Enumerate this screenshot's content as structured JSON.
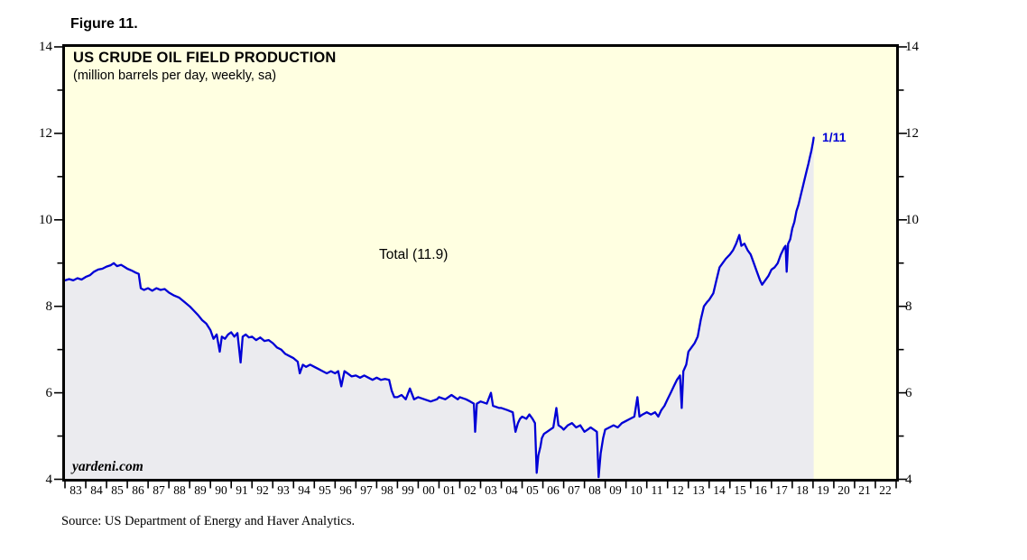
{
  "figure": {
    "label": "Figure 11."
  },
  "chart": {
    "title": "US CRUDE OIL FIELD PRODUCTION",
    "subtitle": "(million barrels per day, weekly, sa)",
    "series_label": "Total (11.9)",
    "last_point_label": "1/11",
    "watermark": "yardeni.com"
  },
  "footer": {
    "source": "Source: US Department of Energy and Haver Analytics."
  },
  "chart_data": {
    "type": "area",
    "title": "US CRUDE OIL FIELD PRODUCTION",
    "subtitle": "(million barrels per day, weekly, sa)",
    "ylabel": "million barrels per day",
    "frequency": "weekly, seasonally adjusted",
    "series_name": "Total",
    "latest_value": 11.9,
    "latest_date_label": "1/11",
    "xlim": [
      1983,
      2023
    ],
    "ylim": [
      4,
      14
    ],
    "y_major_ticks": [
      4,
      6,
      8,
      10,
      12,
      14
    ],
    "y_minor_ticks": [
      5,
      7,
      9,
      11,
      13
    ],
    "x_tick_labels": [
      "83",
      "84",
      "85",
      "86",
      "87",
      "88",
      "89",
      "90",
      "91",
      "92",
      "93",
      "94",
      "95",
      "96",
      "97",
      "98",
      "99",
      "00",
      "01",
      "02",
      "03",
      "04",
      "05",
      "06",
      "07",
      "08",
      "09",
      "10",
      "11",
      "12",
      "13",
      "14",
      "15",
      "16",
      "17",
      "18",
      "19",
      "20",
      "21",
      "22"
    ],
    "legend_position": "none",
    "grid": false,
    "colors": {
      "line": "#0000d6",
      "fill": "#ebebef",
      "plot_bg": "#ffffe1",
      "frame": "#000000",
      "annotation_blue": "#0000d6"
    },
    "points": [
      [
        1983.0,
        8.6
      ],
      [
        1983.2,
        8.63
      ],
      [
        1983.4,
        8.6
      ],
      [
        1983.6,
        8.65
      ],
      [
        1983.8,
        8.62
      ],
      [
        1984.0,
        8.68
      ],
      [
        1984.2,
        8.72
      ],
      [
        1984.4,
        8.8
      ],
      [
        1984.6,
        8.85
      ],
      [
        1984.8,
        8.87
      ],
      [
        1985.0,
        8.92
      ],
      [
        1985.2,
        8.95
      ],
      [
        1985.35,
        9.0
      ],
      [
        1985.5,
        8.93
      ],
      [
        1985.7,
        8.96
      ],
      [
        1985.9,
        8.9
      ],
      [
        1986.0,
        8.87
      ],
      [
        1986.2,
        8.83
      ],
      [
        1986.4,
        8.78
      ],
      [
        1986.55,
        8.75
      ],
      [
        1986.65,
        8.42
      ],
      [
        1986.8,
        8.38
      ],
      [
        1987.0,
        8.42
      ],
      [
        1987.2,
        8.36
      ],
      [
        1987.4,
        8.42
      ],
      [
        1987.6,
        8.38
      ],
      [
        1987.8,
        8.4
      ],
      [
        1988.0,
        8.32
      ],
      [
        1988.25,
        8.25
      ],
      [
        1988.5,
        8.2
      ],
      [
        1988.75,
        8.1
      ],
      [
        1989.0,
        8.0
      ],
      [
        1989.2,
        7.9
      ],
      [
        1989.4,
        7.8
      ],
      [
        1989.6,
        7.68
      ],
      [
        1989.8,
        7.6
      ],
      [
        1990.0,
        7.45
      ],
      [
        1990.15,
        7.25
      ],
      [
        1990.3,
        7.35
      ],
      [
        1990.45,
        6.95
      ],
      [
        1990.55,
        7.3
      ],
      [
        1990.7,
        7.25
      ],
      [
        1990.85,
        7.35
      ],
      [
        1991.0,
        7.4
      ],
      [
        1991.15,
        7.3
      ],
      [
        1991.3,
        7.38
      ],
      [
        1991.45,
        6.7
      ],
      [
        1991.55,
        7.3
      ],
      [
        1991.7,
        7.35
      ],
      [
        1991.85,
        7.28
      ],
      [
        1992.0,
        7.3
      ],
      [
        1992.2,
        7.22
      ],
      [
        1992.4,
        7.28
      ],
      [
        1992.6,
        7.2
      ],
      [
        1992.8,
        7.22
      ],
      [
        1993.0,
        7.15
      ],
      [
        1993.2,
        7.05
      ],
      [
        1993.4,
        7.0
      ],
      [
        1993.6,
        6.9
      ],
      [
        1993.8,
        6.85
      ],
      [
        1994.0,
        6.8
      ],
      [
        1994.2,
        6.72
      ],
      [
        1994.3,
        6.45
      ],
      [
        1994.45,
        6.65
      ],
      [
        1994.6,
        6.6
      ],
      [
        1994.8,
        6.65
      ],
      [
        1995.0,
        6.6
      ],
      [
        1995.2,
        6.55
      ],
      [
        1995.4,
        6.5
      ],
      [
        1995.6,
        6.45
      ],
      [
        1995.8,
        6.5
      ],
      [
        1996.0,
        6.45
      ],
      [
        1996.15,
        6.5
      ],
      [
        1996.3,
        6.15
      ],
      [
        1996.45,
        6.5
      ],
      [
        1996.6,
        6.45
      ],
      [
        1996.8,
        6.38
      ],
      [
        1997.0,
        6.4
      ],
      [
        1997.2,
        6.35
      ],
      [
        1997.4,
        6.4
      ],
      [
        1997.6,
        6.35
      ],
      [
        1997.8,
        6.3
      ],
      [
        1998.0,
        6.35
      ],
      [
        1998.2,
        6.3
      ],
      [
        1998.4,
        6.32
      ],
      [
        1998.6,
        6.3
      ],
      [
        1998.72,
        6.05
      ],
      [
        1998.85,
        5.9
      ],
      [
        1999.0,
        5.9
      ],
      [
        1999.2,
        5.95
      ],
      [
        1999.4,
        5.85
      ],
      [
        1999.6,
        6.1
      ],
      [
        1999.8,
        5.85
      ],
      [
        2000.0,
        5.9
      ],
      [
        2000.3,
        5.85
      ],
      [
        2000.6,
        5.8
      ],
      [
        2000.9,
        5.85
      ],
      [
        2001.0,
        5.9
      ],
      [
        2001.3,
        5.85
      ],
      [
        2001.6,
        5.95
      ],
      [
        2001.9,
        5.85
      ],
      [
        2002.0,
        5.9
      ],
      [
        2002.3,
        5.85
      ],
      [
        2002.5,
        5.8
      ],
      [
        2002.68,
        5.75
      ],
      [
        2002.74,
        5.1
      ],
      [
        2002.82,
        5.75
      ],
      [
        2003.0,
        5.8
      ],
      [
        2003.3,
        5.75
      ],
      [
        2003.5,
        6.0
      ],
      [
        2003.6,
        5.7
      ],
      [
        2003.9,
        5.65
      ],
      [
        2004.0,
        5.65
      ],
      [
        2004.3,
        5.6
      ],
      [
        2004.55,
        5.55
      ],
      [
        2004.68,
        5.1
      ],
      [
        2004.8,
        5.3
      ],
      [
        2004.9,
        5.4
      ],
      [
        2005.0,
        5.45
      ],
      [
        2005.2,
        5.4
      ],
      [
        2005.35,
        5.5
      ],
      [
        2005.5,
        5.4
      ],
      [
        2005.62,
        5.3
      ],
      [
        2005.7,
        4.15
      ],
      [
        2005.78,
        4.55
      ],
      [
        2005.88,
        4.75
      ],
      [
        2005.95,
        4.95
      ],
      [
        2006.05,
        5.05
      ],
      [
        2006.2,
        5.1
      ],
      [
        2006.35,
        5.15
      ],
      [
        2006.5,
        5.2
      ],
      [
        2006.65,
        5.65
      ],
      [
        2006.75,
        5.25
      ],
      [
        2006.9,
        5.2
      ],
      [
        2007.0,
        5.15
      ],
      [
        2007.2,
        5.25
      ],
      [
        2007.4,
        5.3
      ],
      [
        2007.6,
        5.2
      ],
      [
        2007.8,
        5.25
      ],
      [
        2008.0,
        5.1
      ],
      [
        2008.15,
        5.15
      ],
      [
        2008.3,
        5.2
      ],
      [
        2008.45,
        5.15
      ],
      [
        2008.6,
        5.1
      ],
      [
        2008.68,
        4.05
      ],
      [
        2008.78,
        4.6
      ],
      [
        2008.9,
        4.95
      ],
      [
        2009.0,
        5.15
      ],
      [
        2009.2,
        5.2
      ],
      [
        2009.4,
        5.25
      ],
      [
        2009.6,
        5.2
      ],
      [
        2009.8,
        5.3
      ],
      [
        2010.0,
        5.35
      ],
      [
        2010.2,
        5.4
      ],
      [
        2010.4,
        5.45
      ],
      [
        2010.55,
        5.9
      ],
      [
        2010.65,
        5.45
      ],
      [
        2010.8,
        5.5
      ],
      [
        2011.0,
        5.55
      ],
      [
        2011.2,
        5.5
      ],
      [
        2011.4,
        5.55
      ],
      [
        2011.55,
        5.45
      ],
      [
        2011.7,
        5.6
      ],
      [
        2011.85,
        5.7
      ],
      [
        2012.0,
        5.85
      ],
      [
        2012.15,
        6.0
      ],
      [
        2012.3,
        6.15
      ],
      [
        2012.45,
        6.3
      ],
      [
        2012.6,
        6.4
      ],
      [
        2012.68,
        5.65
      ],
      [
        2012.76,
        6.5
      ],
      [
        2012.9,
        6.65
      ],
      [
        2013.0,
        6.95
      ],
      [
        2013.15,
        7.05
      ],
      [
        2013.3,
        7.15
      ],
      [
        2013.45,
        7.3
      ],
      [
        2013.6,
        7.7
      ],
      [
        2013.75,
        8.0
      ],
      [
        2013.9,
        8.1
      ],
      [
        2014.0,
        8.15
      ],
      [
        2014.2,
        8.3
      ],
      [
        2014.35,
        8.6
      ],
      [
        2014.5,
        8.9
      ],
      [
        2014.65,
        9.0
      ],
      [
        2014.8,
        9.1
      ],
      [
        2015.0,
        9.2
      ],
      [
        2015.15,
        9.3
      ],
      [
        2015.3,
        9.45
      ],
      [
        2015.45,
        9.65
      ],
      [
        2015.55,
        9.4
      ],
      [
        2015.7,
        9.45
      ],
      [
        2015.85,
        9.3
      ],
      [
        2016.0,
        9.2
      ],
      [
        2016.15,
        9.0
      ],
      [
        2016.3,
        8.8
      ],
      [
        2016.45,
        8.6
      ],
      [
        2016.55,
        8.5
      ],
      [
        2016.7,
        8.6
      ],
      [
        2016.85,
        8.7
      ],
      [
        2017.0,
        8.85
      ],
      [
        2017.15,
        8.9
      ],
      [
        2017.3,
        9.0
      ],
      [
        2017.45,
        9.2
      ],
      [
        2017.6,
        9.35
      ],
      [
        2017.68,
        9.4
      ],
      [
        2017.73,
        8.8
      ],
      [
        2017.8,
        9.45
      ],
      [
        2017.9,
        9.55
      ],
      [
        2018.0,
        9.8
      ],
      [
        2018.1,
        9.95
      ],
      [
        2018.2,
        10.2
      ],
      [
        2018.3,
        10.35
      ],
      [
        2018.4,
        10.55
      ],
      [
        2018.5,
        10.75
      ],
      [
        2018.6,
        10.95
      ],
      [
        2018.7,
        11.15
      ],
      [
        2018.78,
        11.3
      ],
      [
        2018.85,
        11.45
      ],
      [
        2018.92,
        11.6
      ],
      [
        2019.0,
        11.8
      ],
      [
        2019.03,
        11.9
      ]
    ]
  }
}
